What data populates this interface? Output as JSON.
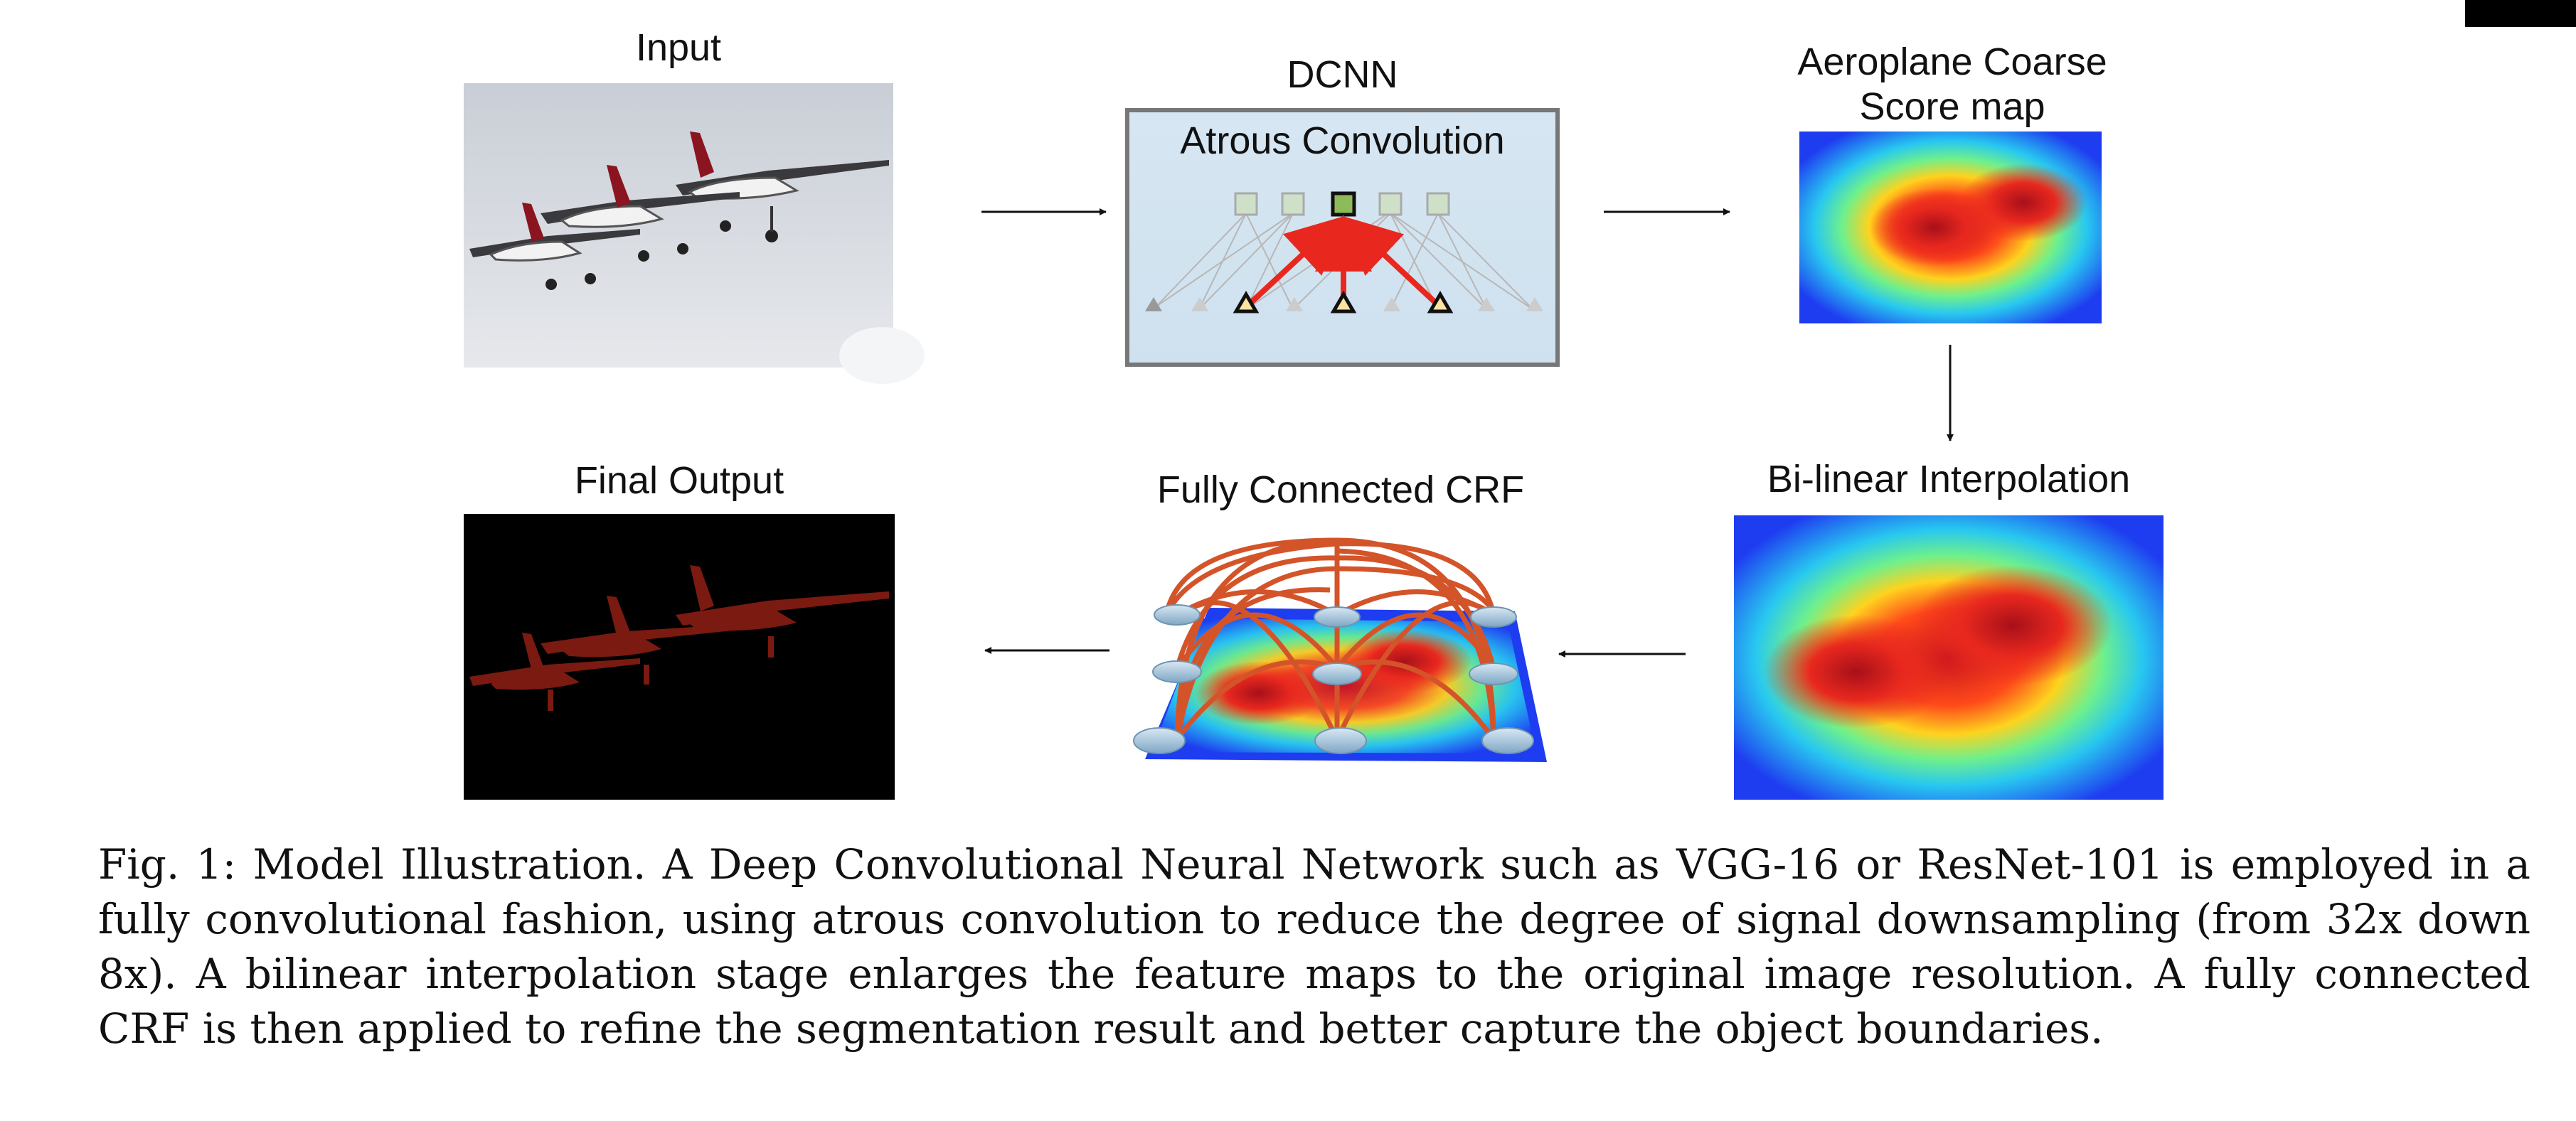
{
  "stages": {
    "input": {
      "label": "Input"
    },
    "dcnn": {
      "label": "DCNN",
      "inner_label": "Atrous Convolution"
    },
    "coarse": {
      "label_line1": "Aeroplane Coarse",
      "label_line2": "Score map"
    },
    "bilinear": {
      "label": "Bi-linear Interpolation"
    },
    "crf": {
      "label": "Fully Connected CRF"
    },
    "output": {
      "label": "Final Output"
    }
  },
  "caption": {
    "text": "Fig. 1: Model Illustration. A Deep Convolutional Neural Network such as VGG-16 or ResNet-101 is employed in a fully convolutional fashion, using atrous convolution to reduce the degree of signal downsampling (from 32x down 8x). A bilinear interpolation stage enlarges the feature maps to the original image resolution. A fully connected CRF is then applied to refine the segmentation result and better capture the object boundaries."
  },
  "colors": {
    "dcnn_fill": "#d6e6f2",
    "dcnn_border": "#777777",
    "heat_low": "#1e3cf0",
    "heat_high": "#c8141e",
    "crf_edges": "#d4542a",
    "mask": "#7a1a10",
    "atrous_arrow": "#e8281e"
  }
}
